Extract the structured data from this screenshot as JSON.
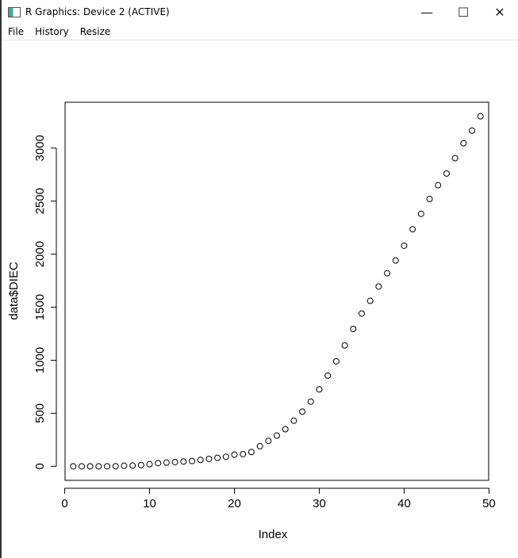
{
  "window": {
    "title": "R Graphics: Device 2 (ACTIVE)",
    "menu": [
      "File",
      "History",
      "Resize"
    ]
  },
  "chart_data": {
    "type": "scatter",
    "x_label": "Index",
    "y_label": "data$DIEC",
    "x": [
      1,
      2,
      3,
      4,
      5,
      6,
      7,
      8,
      9,
      10,
      11,
      12,
      13,
      14,
      15,
      16,
      17,
      18,
      19,
      20,
      21,
      22,
      23,
      24,
      25,
      26,
      27,
      28,
      29,
      30,
      31,
      32,
      33,
      34,
      35,
      36,
      37,
      38,
      39,
      40,
      41,
      42,
      43,
      44,
      45,
      46,
      47,
      48,
      49
    ],
    "values": [
      0,
      0,
      0,
      0,
      0,
      1,
      5,
      7,
      12,
      20,
      30,
      35,
      40,
      45,
      50,
      60,
      70,
      80,
      90,
      110,
      115,
      135,
      190,
      240,
      290,
      350,
      430,
      515,
      610,
      725,
      855,
      990,
      1140,
      1295,
      1440,
      1560,
      1695,
      1820,
      1940,
      2080,
      2235,
      2380,
      2520,
      2650,
      2760,
      2905,
      3045,
      3165,
      3300
    ],
    "color": "#000000",
    "xlim": [
      0.04,
      49.96
    ],
    "ylim": [
      -132,
      3432
    ],
    "xticks": [
      0,
      10,
      20,
      30,
      40,
      50
    ],
    "yticks": [
      0,
      500,
      1000,
      1500,
      2000,
      2500,
      3000
    ]
  }
}
